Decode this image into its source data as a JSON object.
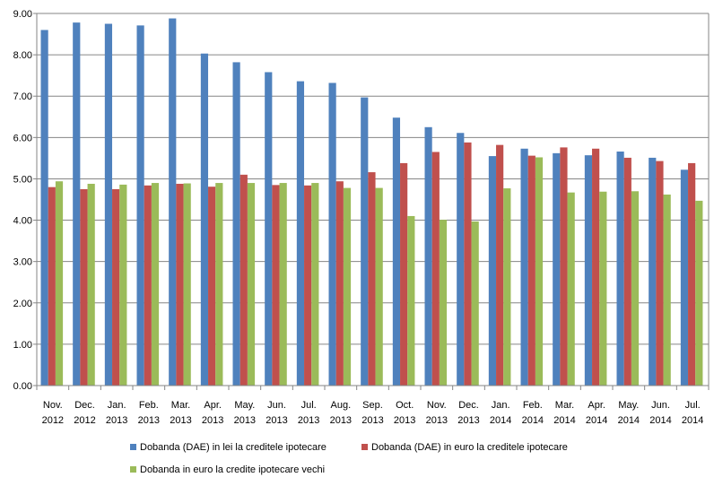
{
  "chart_data": {
    "type": "bar",
    "categories": [
      [
        "Nov.",
        "2012"
      ],
      [
        "Dec.",
        "2012"
      ],
      [
        "Jan.",
        "2013"
      ],
      [
        "Feb.",
        "2013"
      ],
      [
        "Mar.",
        "2013"
      ],
      [
        "Apr.",
        "2013"
      ],
      [
        "May.",
        "2013"
      ],
      [
        "Jun.",
        "2013"
      ],
      [
        "Jul.",
        "2013"
      ],
      [
        "Aug.",
        "2013"
      ],
      [
        "Sep.",
        "2013"
      ],
      [
        "Oct.",
        "2013"
      ],
      [
        "Nov.",
        "2013"
      ],
      [
        "Dec.",
        "2013"
      ],
      [
        "Jan.",
        "2014"
      ],
      [
        "Feb.",
        "2014"
      ],
      [
        "Mar.",
        "2014"
      ],
      [
        "Apr.",
        "2014"
      ],
      [
        "May.",
        "2014"
      ],
      [
        "Jun.",
        "2014"
      ],
      [
        "Jul.",
        "2014"
      ]
    ],
    "series": [
      {
        "name": "Dobanda (DAE) in lei la creditele ipotecare",
        "color": "#4F81BD",
        "values": [
          8.6,
          8.78,
          8.75,
          8.71,
          8.88,
          8.03,
          7.82,
          7.58,
          7.36,
          7.32,
          6.97,
          6.48,
          6.25,
          6.11,
          5.55,
          5.73,
          5.62,
          5.57,
          5.66,
          5.51,
          5.22
        ]
      },
      {
        "name": "Dobanda (DAE) in euro la creditele ipotecare",
        "color": "#C0504D",
        "values": [
          4.8,
          4.75,
          4.75,
          4.84,
          4.88,
          4.81,
          5.1,
          4.85,
          4.84,
          4.94,
          5.16,
          5.38,
          5.65,
          5.88,
          5.82,
          5.56,
          5.76,
          5.73,
          5.51,
          5.43,
          5.38
        ]
      },
      {
        "name": "Dobanda in euro la credite ipotecare vechi",
        "color": "#9BBB59",
        "values": [
          4.94,
          4.88,
          4.86,
          4.9,
          4.89,
          4.9,
          4.9,
          4.9,
          4.9,
          4.78,
          4.78,
          4.1,
          4.01,
          3.97,
          4.77,
          5.52,
          4.67,
          4.69,
          4.7,
          4.62,
          4.47
        ]
      }
    ],
    "y_ticks": [
      "0.00",
      "1.00",
      "2.00",
      "3.00",
      "4.00",
      "5.00",
      "6.00",
      "7.00",
      "8.00",
      "9.00"
    ],
    "ylim": [
      0,
      9
    ],
    "grid": true,
    "legend_position": "bottom"
  }
}
